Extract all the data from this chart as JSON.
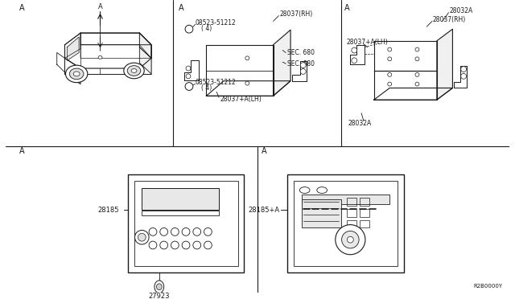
{
  "bg_color": "#ffffff",
  "line_color": "#1a1a1a",
  "text_color": "#1a1a1a",
  "parts": {
    "28037_RH_top": "28037(RH)",
    "08523_51212_top": "08523-51212",
    "08523_51212_qty": "( 4)",
    "sec680_top": "SEC. 680",
    "sec680_bot": "SEC. 680",
    "28037_ALH_top": "28037+A(LH)",
    "08523_51212_bot": "08523-51212",
    "08523_51212_qty2": "( 4)",
    "28032A_top": "28032A",
    "28037_RH_right": "28037(RH)",
    "28037_ALH_right": "28037+A(LH)",
    "28032A_bot": "28032A",
    "28185": "28185",
    "27923": "27923",
    "28185_A": "28185+A",
    "ref_num": "R2B0000Y",
    "A_label": "A"
  }
}
